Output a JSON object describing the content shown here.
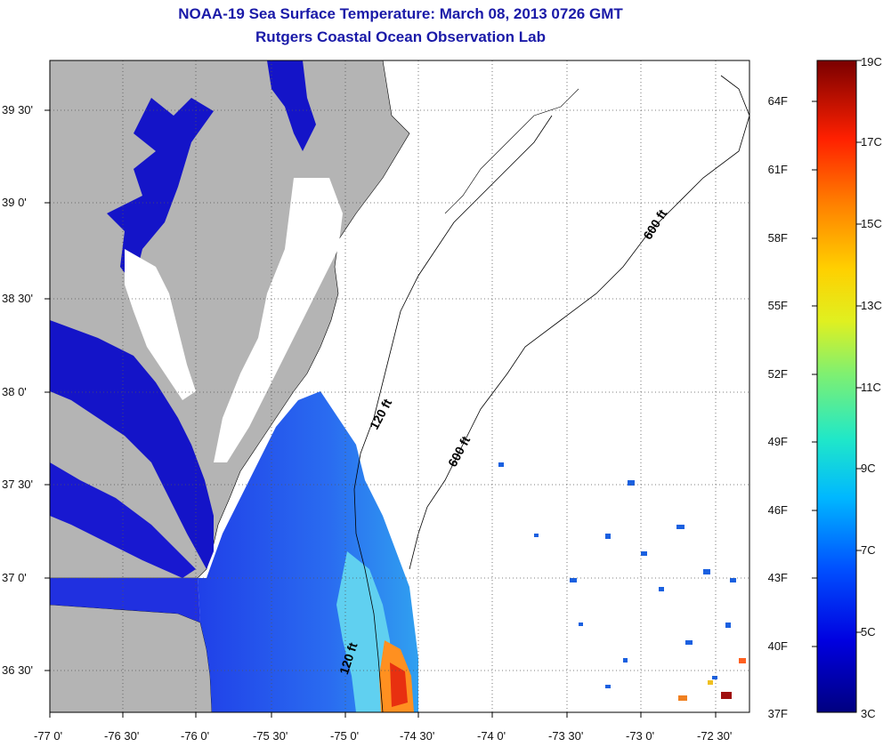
{
  "title": {
    "line1": "NOAA-19 Sea Surface Temperature:  March 08, 2013 0726 GMT",
    "line2": "Rutgers Coastal Ocean Observation Lab"
  },
  "map": {
    "lat_labels": [
      "39 30'",
      "39 0'",
      "38 30'",
      "38 0'",
      "37 30'",
      "37 0'",
      "36 30'"
    ],
    "lon_labels": [
      "-77 0'",
      "-76 30'",
      "-76 0'",
      "-75 30'",
      "-75 0'",
      "-74 30'",
      "-74 0'",
      "-73 30'",
      "-73 0'",
      "-72 30'"
    ],
    "contour_labels": [
      "600 ft",
      "120 ft",
      "600 ft",
      "120 ft"
    ],
    "colors": {
      "land": "#b4b4b4",
      "cloud_mask": "#ffffff",
      "frame": "#000000",
      "cold_water": "#1010d0",
      "warm_water": "#ff8020"
    }
  },
  "colorbar": {
    "fahrenheit": [
      "64F",
      "61F",
      "58F",
      "55F",
      "52F",
      "49F",
      "46F",
      "43F",
      "40F",
      "37F"
    ],
    "celsius": [
      "19C",
      "17C",
      "15C",
      "13C",
      "11C",
      "9C",
      "7C",
      "5C",
      "3C"
    ]
  }
}
